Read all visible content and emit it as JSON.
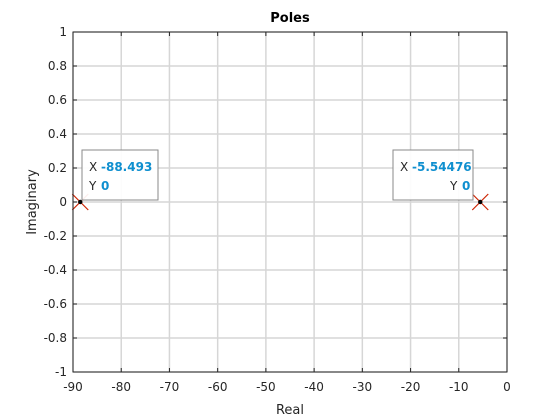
{
  "chart_data": {
    "type": "scatter",
    "title": "Poles",
    "xlabel": "Real",
    "ylabel": "Imaginary",
    "xlim": [
      -90,
      0
    ],
    "ylim": [
      -1,
      1
    ],
    "xticks": [
      "-90",
      "-80",
      "-70",
      "-60",
      "-50",
      "-40",
      "-30",
      "-20",
      "-10",
      "0"
    ],
    "yticks": [
      "1",
      "0.8",
      "0.6",
      "0.4",
      "0.2",
      "0",
      "-0.2",
      "-0.4",
      "-0.6",
      "-0.8",
      "-1"
    ],
    "grid": true,
    "marker": "x",
    "marker_color": "#cc2200",
    "points": [
      {
        "x": -88.493,
        "y": 0
      },
      {
        "x": -5.54476,
        "y": 0
      }
    ],
    "datatips": [
      {
        "x_key": "X",
        "x_text": "-88.493",
        "y_key": "Y",
        "y_text": "0"
      },
      {
        "x_key": "X",
        "x_text": "-5.54476",
        "y_key": "Y",
        "y_text": "0"
      }
    ]
  }
}
